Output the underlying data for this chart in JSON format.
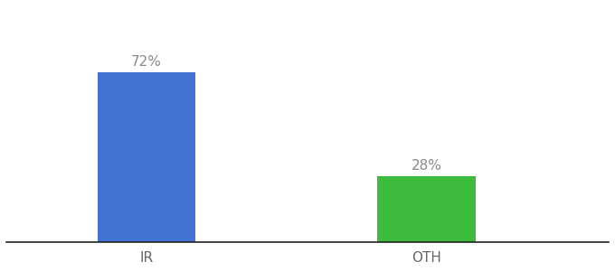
{
  "categories": [
    "IR",
    "OTH"
  ],
  "values": [
    72,
    28
  ],
  "bar_colors": [
    "#4472d4",
    "#3dbb3d"
  ],
  "label_texts": [
    "72%",
    "28%"
  ],
  "ylim": [
    0,
    100
  ],
  "background_color": "#ffffff",
  "label_color": "#888888",
  "tick_label_color": "#666666",
  "bar_width": 0.35,
  "label_fontsize": 11,
  "tick_fontsize": 11,
  "x_positions": [
    1,
    2
  ],
  "xlim": [
    0.5,
    2.65
  ]
}
